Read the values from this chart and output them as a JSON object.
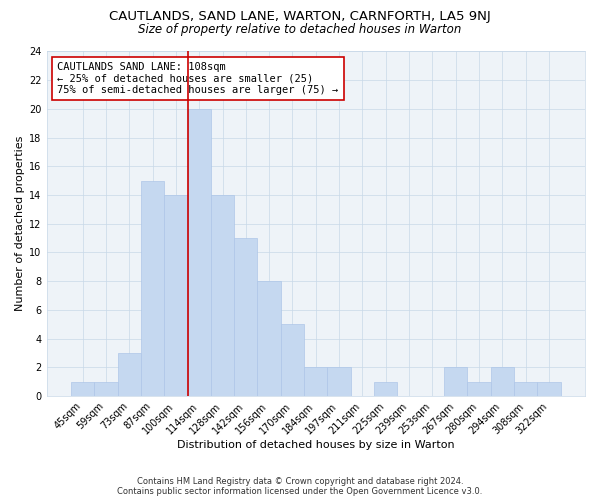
{
  "title": "CAUTLANDS, SAND LANE, WARTON, CARNFORTH, LA5 9NJ",
  "subtitle": "Size of property relative to detached houses in Warton",
  "xlabel": "Distribution of detached houses by size in Warton",
  "ylabel": "Number of detached properties",
  "bar_labels": [
    "45sqm",
    "59sqm",
    "73sqm",
    "87sqm",
    "100sqm",
    "114sqm",
    "128sqm",
    "142sqm",
    "156sqm",
    "170sqm",
    "184sqm",
    "197sqm",
    "211sqm",
    "225sqm",
    "239sqm",
    "253sqm",
    "267sqm",
    "280sqm",
    "294sqm",
    "308sqm",
    "322sqm"
  ],
  "bar_values": [
    1,
    1,
    3,
    15,
    14,
    20,
    14,
    11,
    8,
    5,
    2,
    2,
    0,
    1,
    0,
    0,
    2,
    1,
    2,
    1,
    1
  ],
  "bar_color": "#c5d8f0",
  "bar_edge_color": "#aec6e8",
  "vline_x_index": 5,
  "vline_color": "#cc0000",
  "annotation_title": "CAUTLANDS SAND LANE: 108sqm",
  "annotation_line1": "← 25% of detached houses are smaller (25)",
  "annotation_line2": "75% of semi-detached houses are larger (75) →",
  "annotation_box_color": "#ffffff",
  "annotation_box_edge": "#cc0000",
  "ylim": [
    0,
    24
  ],
  "yticks": [
    0,
    2,
    4,
    6,
    8,
    10,
    12,
    14,
    16,
    18,
    20,
    22,
    24
  ],
  "footnote1": "Contains HM Land Registry data © Crown copyright and database right 2024.",
  "footnote2": "Contains public sector information licensed under the Open Government Licence v3.0.",
  "background_color": "#ffffff",
  "grid_color": "#c8d8e8",
  "title_fontsize": 9.5,
  "subtitle_fontsize": 8.5,
  "axis_label_fontsize": 8,
  "tick_fontsize": 7,
  "annotation_fontsize": 7.5,
  "footnote_fontsize": 6
}
